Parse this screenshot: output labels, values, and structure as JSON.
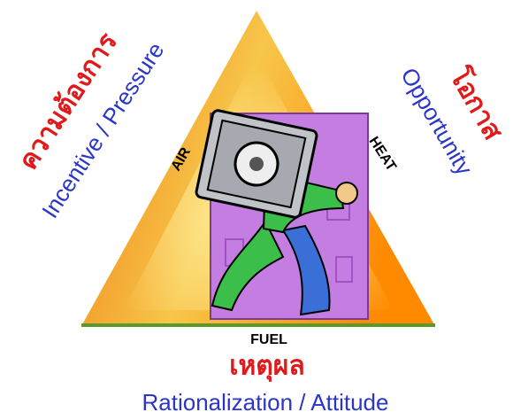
{
  "left": {
    "thai": "ความต้องการ",
    "english": "Incentive / Pressure"
  },
  "right": {
    "thai": "โอกาส",
    "english": "Opportunity"
  },
  "bottom": {
    "thai": "เหตุผล",
    "english": "Rationalization / Attitude"
  },
  "triangle": {
    "left_side": "AIR",
    "right_side": "HEAT",
    "base": "FUEL"
  }
}
